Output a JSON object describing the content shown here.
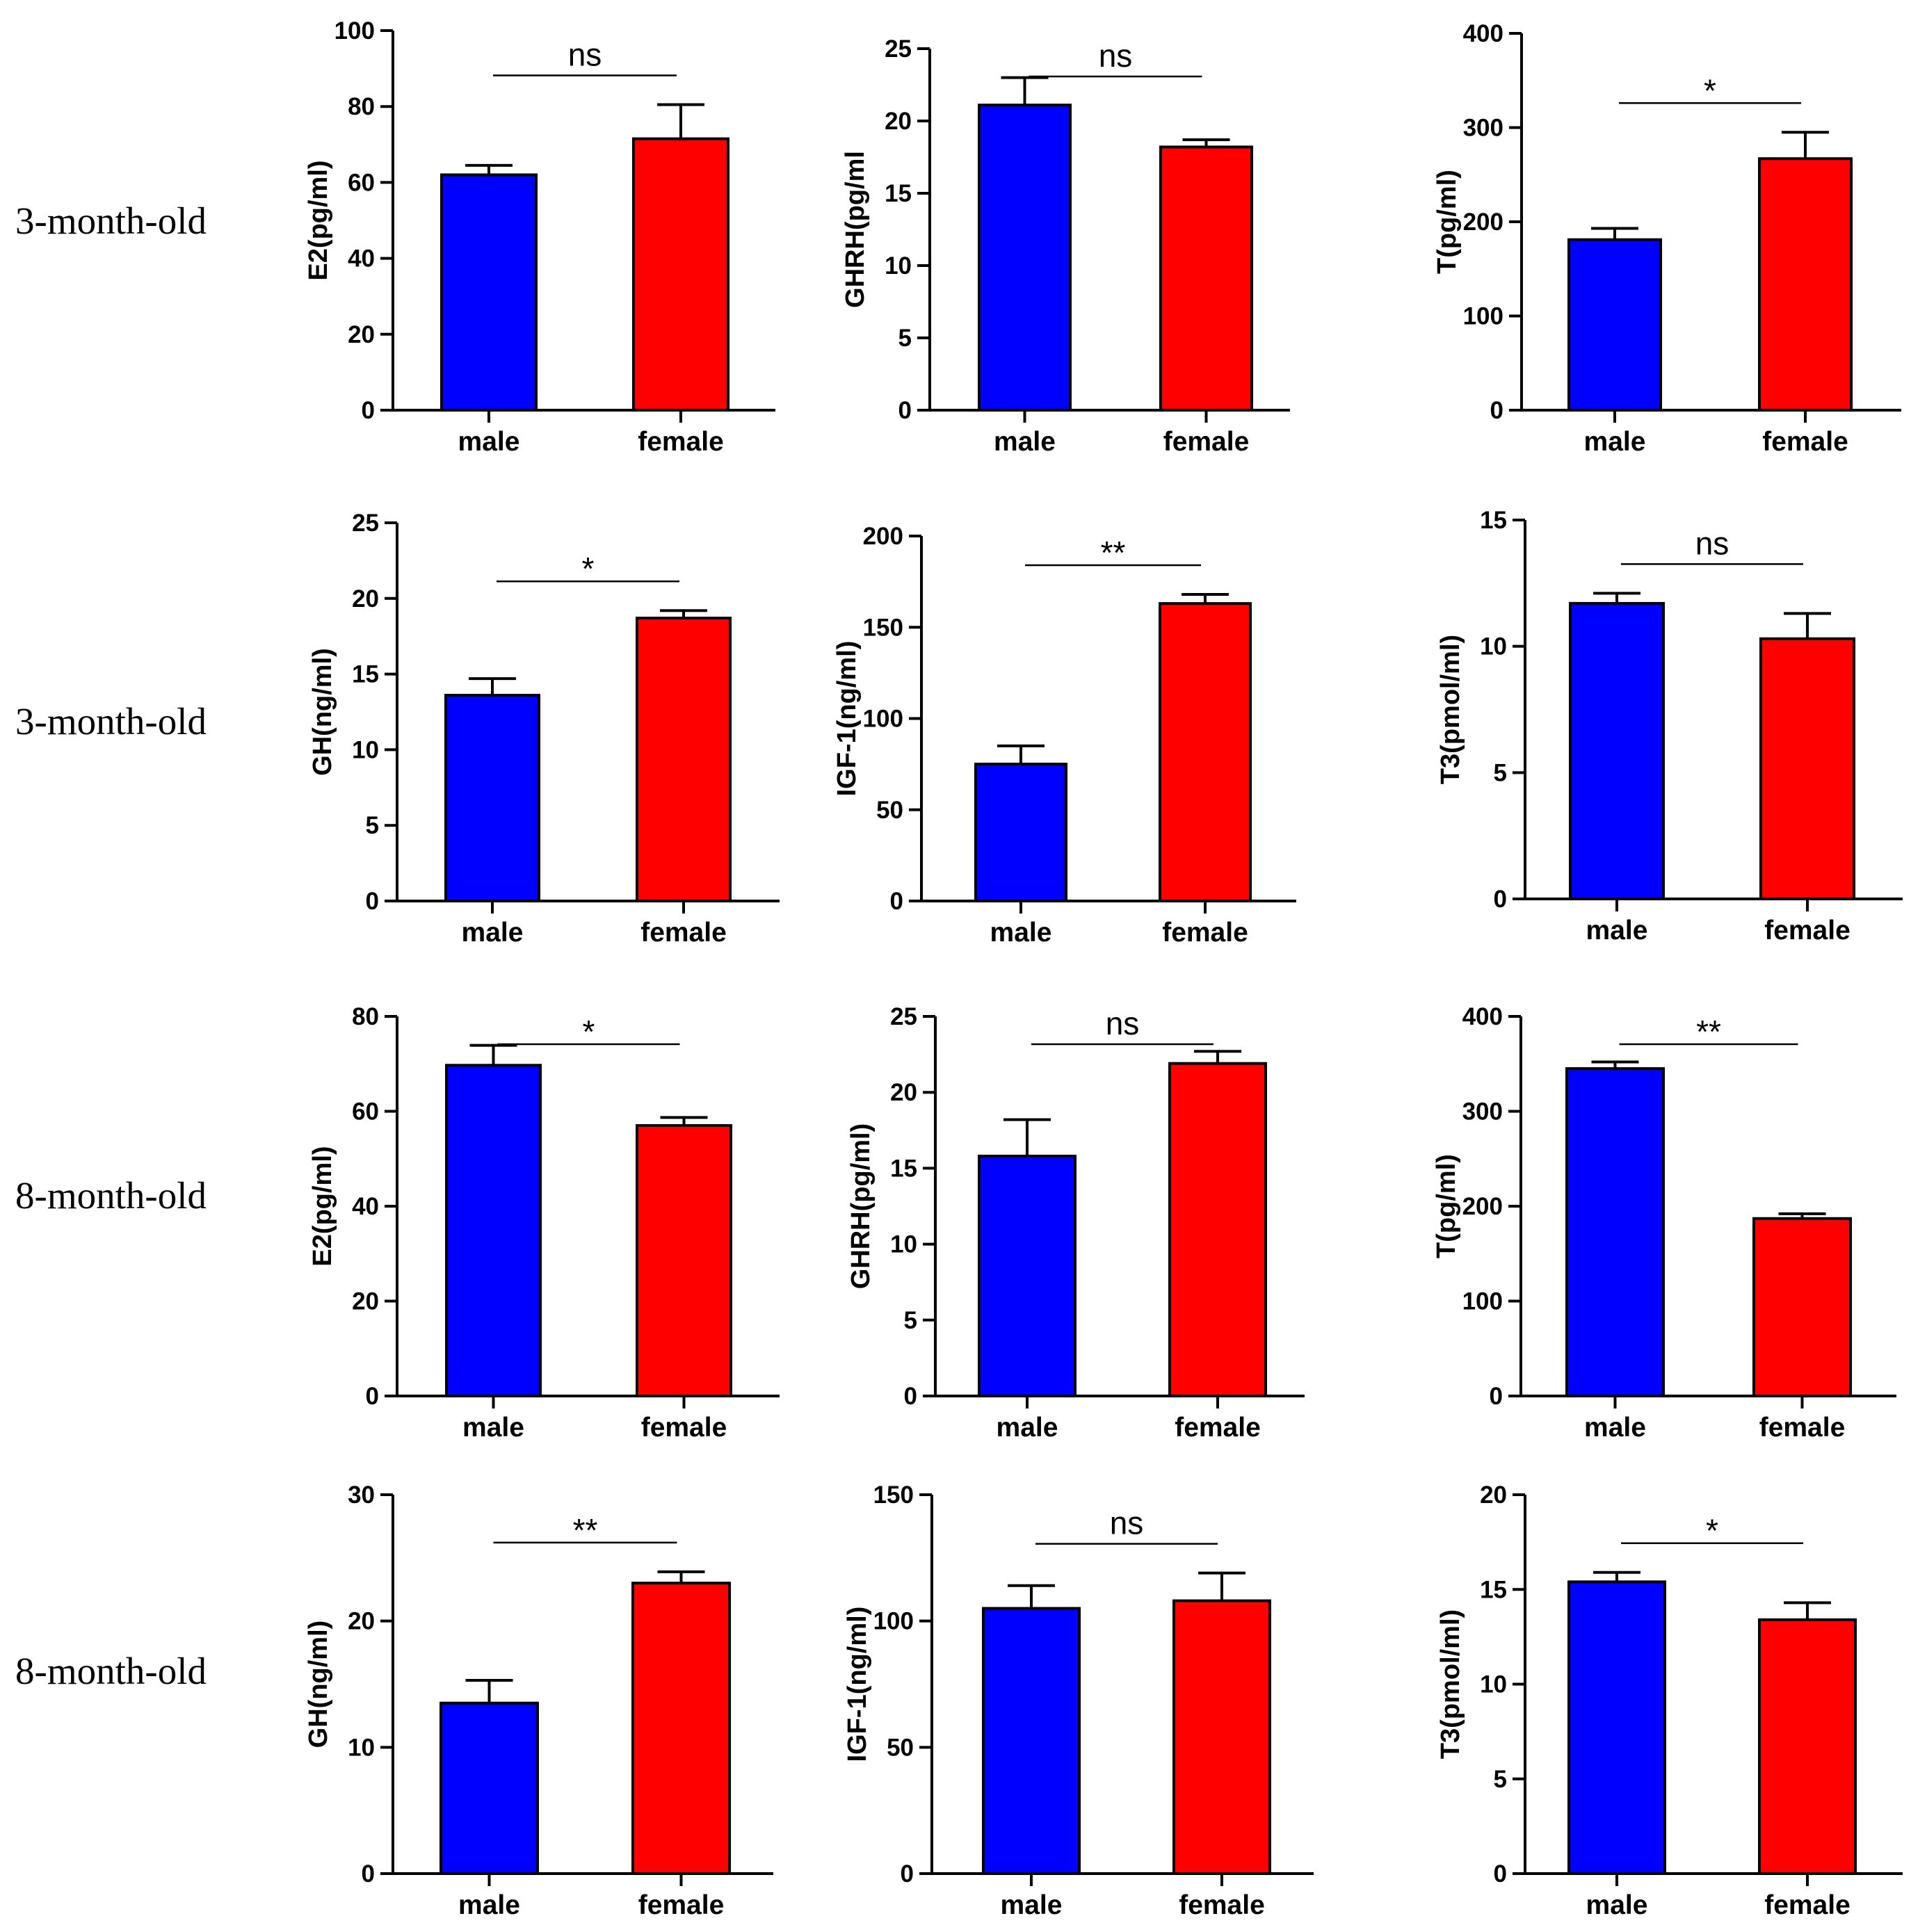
{
  "row_labels": [
    "3-month-old",
    "3-month-old",
    "8-month-old",
    "8-month-old"
  ],
  "colors": {
    "male": "#0000ff",
    "female": "#ff0000"
  },
  "chart_data": [
    {
      "type": "bar",
      "categories": [
        "male",
        "female"
      ],
      "values": [
        62,
        71.5
      ],
      "errors": [
        2.5,
        9
      ],
      "ylabel": "E2(pg/ml)",
      "ylim": [
        0,
        100
      ],
      "ticks": [
        0,
        20,
        40,
        60,
        80,
        100
      ],
      "significance": "ns",
      "grid": false
    },
    {
      "type": "bar",
      "categories": [
        "male",
        "female"
      ],
      "values": [
        21.1,
        18.2
      ],
      "errors": [
        1.9,
        0.5
      ],
      "ylabel": "GHRH(pg/ml",
      "ylim": [
        0,
        25
      ],
      "ticks": [
        0,
        5,
        10,
        15,
        20,
        25
      ],
      "significance": "ns",
      "grid": false
    },
    {
      "type": "bar",
      "categories": [
        "male",
        "female"
      ],
      "values": [
        181,
        267
      ],
      "errors": [
        12,
        28
      ],
      "ylabel": "T(pg/ml)",
      "ylim": [
        0,
        400
      ],
      "ticks": [
        0,
        100,
        200,
        300,
        400
      ],
      "significance": "*",
      "grid": false
    },
    {
      "type": "bar",
      "categories": [
        "male",
        "female"
      ],
      "values": [
        13.6,
        18.7
      ],
      "errors": [
        1.1,
        0.5
      ],
      "ylabel": "GH(ng/ml)",
      "ylim": [
        0,
        25
      ],
      "ticks": [
        0,
        5,
        10,
        15,
        20,
        25
      ],
      "significance": "*",
      "grid": false
    },
    {
      "type": "bar",
      "categories": [
        "male",
        "female"
      ],
      "values": [
        75,
        163
      ],
      "errors": [
        10,
        5
      ],
      "ylabel": "IGF-1(ng/ml)",
      "ylim": [
        0,
        200
      ],
      "ticks": [
        0,
        50,
        100,
        150,
        200
      ],
      "significance": "**",
      "grid": false
    },
    {
      "type": "bar",
      "categories": [
        "male",
        "female"
      ],
      "values": [
        11.7,
        10.3
      ],
      "errors": [
        0.4,
        1.0
      ],
      "ylabel": "T3(pmol/ml)",
      "ylim": [
        0,
        15
      ],
      "ticks": [
        0,
        5,
        10,
        15
      ],
      "significance": "ns",
      "grid": false
    },
    {
      "type": "bar",
      "categories": [
        "male",
        "female"
      ],
      "values": [
        69.7,
        57
      ],
      "errors": [
        4.2,
        1.7
      ],
      "ylabel": "E2(pg/ml)",
      "ylim": [
        0,
        80
      ],
      "ticks": [
        0,
        20,
        40,
        60,
        80
      ],
      "significance": "*",
      "grid": false
    },
    {
      "type": "bar",
      "categories": [
        "male",
        "female"
      ],
      "values": [
        15.8,
        21.9
      ],
      "errors": [
        2.4,
        0.8
      ],
      "ylabel": "GHRH(pg/ml)",
      "ylim": [
        0,
        25
      ],
      "ticks": [
        0,
        5,
        10,
        15,
        20,
        25
      ],
      "significance": "ns",
      "grid": false
    },
    {
      "type": "bar",
      "categories": [
        "male",
        "female"
      ],
      "values": [
        345,
        187
      ],
      "errors": [
        7,
        5
      ],
      "ylabel": "T(pg/ml)",
      "ylim": [
        0,
        400
      ],
      "ticks": [
        0,
        100,
        200,
        300,
        400
      ],
      "significance": "**",
      "grid": false
    },
    {
      "type": "bar",
      "categories": [
        "male",
        "female"
      ],
      "values": [
        13.5,
        23
      ],
      "errors": [
        1.8,
        0.9
      ],
      "ylabel": "GH(ng/ml)",
      "ylim": [
        0,
        30
      ],
      "ticks": [
        0,
        10,
        20,
        30
      ],
      "significance": "**",
      "grid": false
    },
    {
      "type": "bar",
      "categories": [
        "male",
        "female"
      ],
      "values": [
        105,
        108
      ],
      "errors": [
        9,
        11
      ],
      "ylabel": "IGF-1(ng/ml)",
      "ylim": [
        0,
        150
      ],
      "ticks": [
        0,
        50,
        100,
        150
      ],
      "significance": "ns",
      "grid": false
    },
    {
      "type": "bar",
      "categories": [
        "male",
        "female"
      ],
      "values": [
        15.4,
        13.4
      ],
      "errors": [
        0.5,
        0.9
      ],
      "ylabel": "T3(pmol/ml)",
      "ylim": [
        0,
        20
      ],
      "ticks": [
        0,
        5,
        10,
        15,
        20
      ],
      "significance": "*",
      "grid": false
    }
  ]
}
